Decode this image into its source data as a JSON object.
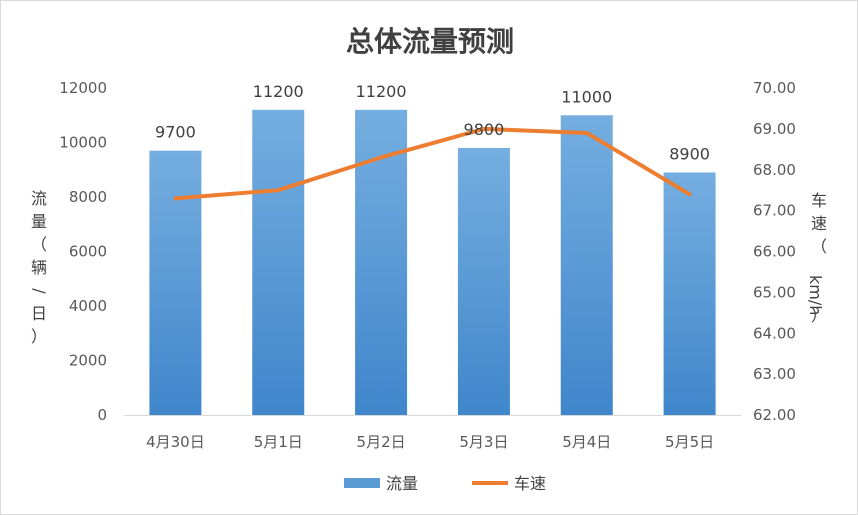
{
  "chart_data": {
    "type": "bar",
    "title": "总体流量预测",
    "categories": [
      "4月30日",
      "5月1日",
      "5月2日",
      "5月3日",
      "5月4日",
      "5月5日"
    ],
    "series": [
      {
        "name": "流量",
        "type": "bar",
        "axis": "left",
        "color": "#5b9bd5",
        "values": [
          9700,
          11200,
          11200,
          9800,
          11000,
          8900
        ],
        "labels": [
          "9700",
          "11200",
          "11200",
          "9800",
          "11000",
          "8900"
        ]
      },
      {
        "name": "车速",
        "type": "line",
        "axis": "right",
        "color": "#ed7d31",
        "values": [
          67.3,
          67.5,
          68.3,
          69.0,
          68.9,
          67.4
        ]
      }
    ],
    "ylabel_left": "流量（辆/日）",
    "ylabel_right": "车速（km/h）",
    "ylim_left": [
      0,
      12000
    ],
    "yticks_left": [
      "0",
      "2000",
      "4000",
      "6000",
      "8000",
      "10000",
      "12000"
    ],
    "ylim_right": [
      62.0,
      70.0
    ],
    "yticks_right": [
      "62.00",
      "63.00",
      "64.00",
      "65.00",
      "66.00",
      "67.00",
      "68.00",
      "69.00",
      "70.00"
    ],
    "legend_position": "bottom",
    "grid": false
  }
}
